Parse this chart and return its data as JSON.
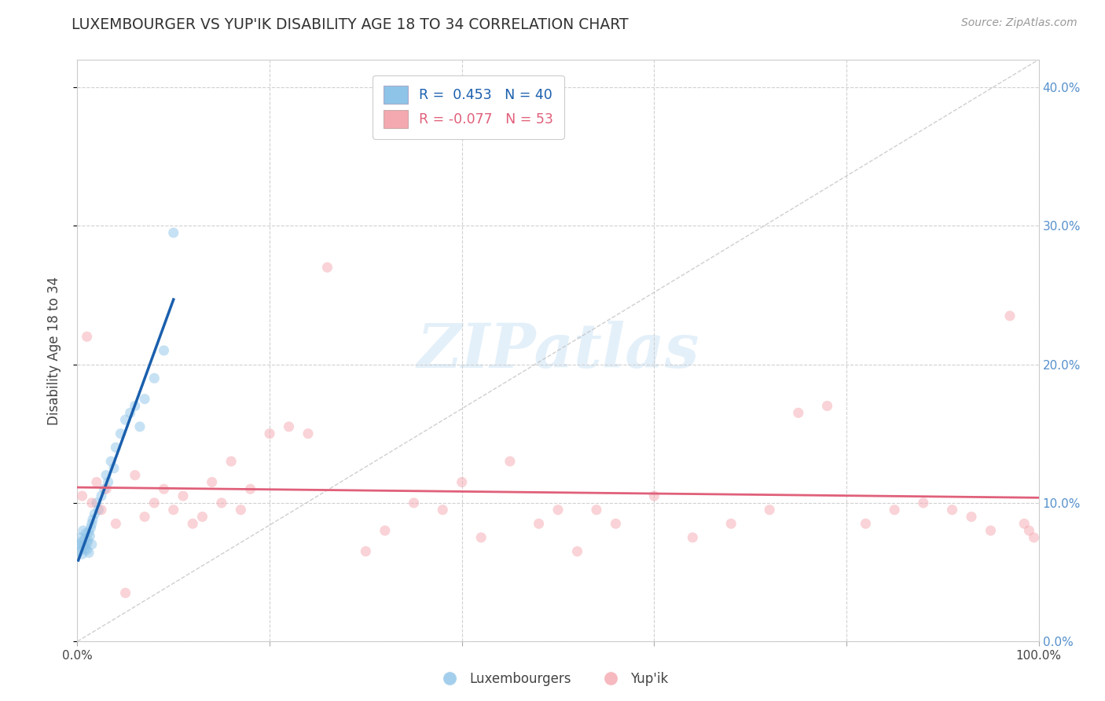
{
  "title": "LUXEMBOURGER VS YUP'IK DISABILITY AGE 18 TO 34 CORRELATION CHART",
  "source_text": "Source: ZipAtlas.com",
  "ylabel": "Disability Age 18 to 34",
  "xlim": [
    0.0,
    1.0
  ],
  "ylim": [
    0.0,
    0.42
  ],
  "xticks": [
    0.0,
    0.2,
    0.4,
    0.6,
    0.8,
    1.0
  ],
  "xtick_labels": [
    "0.0%",
    "",
    "",
    "",
    "",
    "100.0%"
  ],
  "yticks": [
    0.0,
    0.1,
    0.2,
    0.3,
    0.4
  ],
  "ytick_labels_right": [
    "0.0%",
    "10.0%",
    "20.0%",
    "30.0%",
    "40.0%"
  ],
  "watermark_text": "ZIPatlas",
  "legend_label1": "Luxembourgers",
  "legend_label2": "Yup'ik",
  "blue_color": "#8ec4e8",
  "pink_color": "#f4a8b0",
  "blue_line_color": "#1a5fad",
  "pink_line_color": "#e0607a",
  "dot_size": 90,
  "dot_alpha": 0.5,
  "blue_R": 0.453,
  "blue_N": 40,
  "pink_R": -0.077,
  "pink_N": 53,
  "lux_x": [
    0.001,
    0.002,
    0.003,
    0.004,
    0.005,
    0.005,
    0.006,
    0.007,
    0.008,
    0.008,
    0.009,
    0.01,
    0.01,
    0.011,
    0.012,
    0.012,
    0.013,
    0.014,
    0.015,
    0.015,
    0.016,
    0.018,
    0.02,
    0.022,
    0.025,
    0.028,
    0.03,
    0.032,
    0.035,
    0.038,
    0.04,
    0.045,
    0.05,
    0.055,
    0.06,
    0.065,
    0.07,
    0.08,
    0.09,
    0.1
  ],
  "lux_y": [
    0.07,
    0.065,
    0.075,
    0.068,
    0.072,
    0.063,
    0.08,
    0.069,
    0.074,
    0.067,
    0.078,
    0.071,
    0.066,
    0.073,
    0.079,
    0.064,
    0.076,
    0.082,
    0.07,
    0.085,
    0.088,
    0.092,
    0.1,
    0.095,
    0.105,
    0.11,
    0.12,
    0.115,
    0.13,
    0.125,
    0.14,
    0.15,
    0.16,
    0.165,
    0.17,
    0.155,
    0.175,
    0.19,
    0.21,
    0.295
  ],
  "yupik_x": [
    0.005,
    0.01,
    0.015,
    0.02,
    0.025,
    0.03,
    0.04,
    0.05,
    0.06,
    0.07,
    0.08,
    0.09,
    0.1,
    0.11,
    0.12,
    0.13,
    0.14,
    0.15,
    0.16,
    0.17,
    0.18,
    0.2,
    0.22,
    0.24,
    0.26,
    0.3,
    0.32,
    0.35,
    0.38,
    0.4,
    0.42,
    0.45,
    0.48,
    0.5,
    0.52,
    0.54,
    0.56,
    0.6,
    0.64,
    0.68,
    0.72,
    0.75,
    0.78,
    0.82,
    0.85,
    0.88,
    0.91,
    0.93,
    0.95,
    0.97,
    0.985,
    0.99,
    0.995
  ],
  "yupik_y": [
    0.105,
    0.22,
    0.1,
    0.115,
    0.095,
    0.11,
    0.085,
    0.035,
    0.12,
    0.09,
    0.1,
    0.11,
    0.095,
    0.105,
    0.085,
    0.09,
    0.115,
    0.1,
    0.13,
    0.095,
    0.11,
    0.15,
    0.155,
    0.15,
    0.27,
    0.065,
    0.08,
    0.1,
    0.095,
    0.115,
    0.075,
    0.13,
    0.085,
    0.095,
    0.065,
    0.095,
    0.085,
    0.105,
    0.075,
    0.085,
    0.095,
    0.165,
    0.17,
    0.085,
    0.095,
    0.1,
    0.095,
    0.09,
    0.08,
    0.235,
    0.085,
    0.08,
    0.075
  ],
  "diag_color": "#bbbbbb",
  "grid_color": "#cccccc",
  "right_tick_color": "#5590cc",
  "title_color": "#333333",
  "source_color": "#999999"
}
